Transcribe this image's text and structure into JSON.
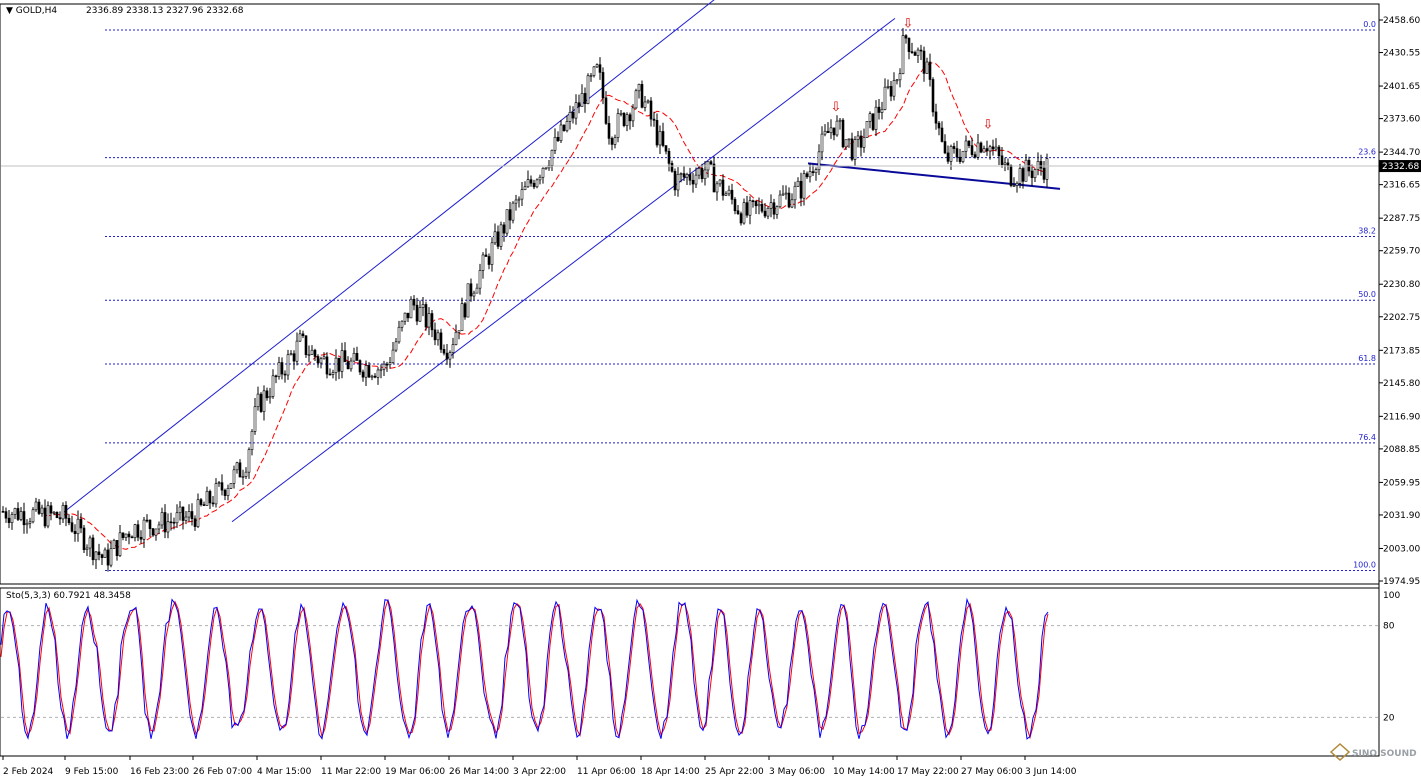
{
  "header": {
    "symbol": "GOLD,H4",
    "ohlc": "2336.89 2338.13 2327.96 2332.68"
  },
  "indicator": {
    "label": "Sto(5,3,3) 60.7921 48.3458",
    "levels": [
      100,
      80,
      20
    ],
    "level_labels": [
      "100",
      "80",
      "20"
    ],
    "main_color": "#0000ff",
    "signal_color": "#ff0000"
  },
  "price_axis": {
    "ticks": [
      2458.6,
      2430.55,
      2401.65,
      2373.6,
      2344.7,
      2316.65,
      2287.75,
      2259.7,
      2230.8,
      2202.75,
      2173.85,
      2145.8,
      2116.9,
      2088.85,
      2059.95,
      2031.9,
      2003.0,
      1974.95
    ],
    "tick_labels": [
      "2458.60",
      "2430.55",
      "2401.65",
      "2373.60",
      "2344.70",
      "2316.65",
      "2287.75",
      "2259.70",
      "2230.80",
      "2202.75",
      "2173.85",
      "2145.80",
      "2116.90",
      "2088.85",
      "2059.95",
      "2031.90",
      "2003.00",
      "1974.95"
    ],
    "current_price": 2332.68,
    "current_price_label": "2332.68"
  },
  "time_axis": {
    "labels": [
      "2 Feb 2024",
      "9 Feb 15:00",
      "16 Feb 23:00",
      "26 Feb 07:00",
      "4 Mar 15:00",
      "11 Mar 22:00",
      "19 Mar 06:00",
      "26 Mar 14:00",
      "3 Apr 22:00",
      "11 Apr 06:00",
      "18 Apr 14:00",
      "25 Apr 22:00",
      "3 May 06:00",
      "10 May 14:00",
      "17 May 22:00",
      "27 May 06:00",
      "3 Jun 14:00"
    ]
  },
  "fibonacci": {
    "color": "#1f1fd0",
    "levels": [
      {
        "label": "0.0",
        "price": 2450.0
      },
      {
        "label": "23.6",
        "price": 2340.0
      },
      {
        "label": "38.2",
        "price": 2272.0
      },
      {
        "label": "50.0",
        "price": 2217.0
      },
      {
        "label": "61.8",
        "price": 2162.0
      },
      {
        "label": "76.4",
        "price": 2094.0
      },
      {
        "label": "100.0",
        "price": 1984.0
      }
    ]
  },
  "colors": {
    "candles": "#000000",
    "moving_average": "#ff0000",
    "channel": "#1f1fd0",
    "neckline": "#0a0a9a",
    "arrows": "#e00000",
    "grid": "#b0b0b0"
  },
  "watermark": "SINO SOUND",
  "chart_data": {
    "type": "candlestick",
    "title": "GOLD,H4",
    "ylim": [
      1974.95,
      2458.6
    ],
    "x_start": "2 Feb 2024",
    "x_end": "3 Jun 14:00",
    "close_path": [
      [
        "2 Feb 2024",
        2035
      ],
      [
        "9 Feb 15:00",
        2030
      ],
      [
        "14 Feb",
        1993
      ],
      [
        "16 Feb 23:00",
        2020
      ],
      [
        "26 Feb 07:00",
        2030
      ],
      [
        "1 Mar",
        2075
      ],
      [
        "4 Mar 15:00",
        2125
      ],
      [
        "8 Mar",
        2180
      ],
      [
        "11 Mar 22:00",
        2165
      ],
      [
        "19 Mar 06:00",
        2158
      ],
      [
        "21 Mar",
        2215
      ],
      [
        "26 Mar 14:00",
        2175
      ],
      [
        "28 Mar",
        2225
      ],
      [
        "3 Apr 22:00",
        2295
      ],
      [
        "9 Apr",
        2350
      ],
      [
        "12 Apr",
        2415
      ],
      [
        "15 Apr",
        2360
      ],
      [
        "18 Apr 14:00",
        2395
      ],
      [
        "22 Apr",
        2320
      ],
      [
        "25 Apr 22:00",
        2330
      ],
      [
        "29 Apr",
        2290
      ],
      [
        "3 May 06:00",
        2300
      ],
      [
        "8 May",
        2312
      ],
      [
        "10 May 14:00",
        2370
      ],
      [
        "14 May",
        2345
      ],
      [
        "17 May 22:00",
        2410
      ],
      [
        "20 May",
        2445
      ],
      [
        "22 May",
        2420
      ],
      [
        "24 May",
        2338
      ],
      [
        "27 May 06:00",
        2345
      ],
      [
        "29 May",
        2355
      ],
      [
        "31 May",
        2325
      ],
      [
        "3 Jun 14:00",
        2332.68
      ]
    ],
    "annotations": [
      {
        "type": "down_arrow",
        "at": "10 May 14:00",
        "price": 2380
      },
      {
        "type": "down_arrow",
        "at": "20 May",
        "price": 2452
      },
      {
        "type": "down_arrow",
        "at": "29 May",
        "price": 2365
      }
    ]
  }
}
